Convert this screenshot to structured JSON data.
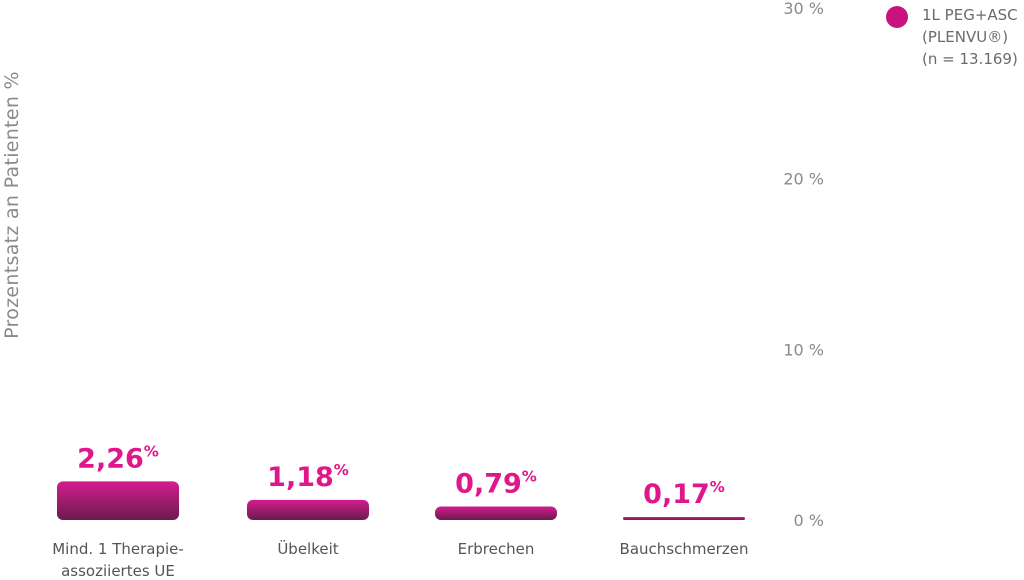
{
  "chart_data": {
    "type": "bar",
    "ylabel": "Prozentsatz an Patienten %",
    "ylim": [
      0,
      30
    ],
    "yticks": [
      {
        "value": 0,
        "label": "0 %"
      },
      {
        "value": 10,
        "label": "10 %"
      },
      {
        "value": 20,
        "label": "20 %"
      },
      {
        "value": 30,
        "label": "30 %"
      }
    ],
    "categories": [
      "Mind. 1 Therapie-\nassoziiertes UE",
      "Übelkeit",
      "Erbrechen",
      "Bauchschmerzen"
    ],
    "series": [
      {
        "name": "1L PEG+ASC\n(PLENVU®)\n(n = 13.169)",
        "values": [
          2.26,
          1.18,
          0.79,
          0.17
        ],
        "labels": [
          "2,26",
          "1,18",
          "0,79",
          "0,17"
        ],
        "unit": "%"
      }
    ],
    "legend_position": "top-right",
    "grid": false,
    "colors": {
      "bar_top": "#d41c8e",
      "bar_bottom": "#6a1b4f",
      "label": "#e0168a",
      "axis_text": "#8a8a8a",
      "legend_dot": "#c8127f"
    }
  }
}
